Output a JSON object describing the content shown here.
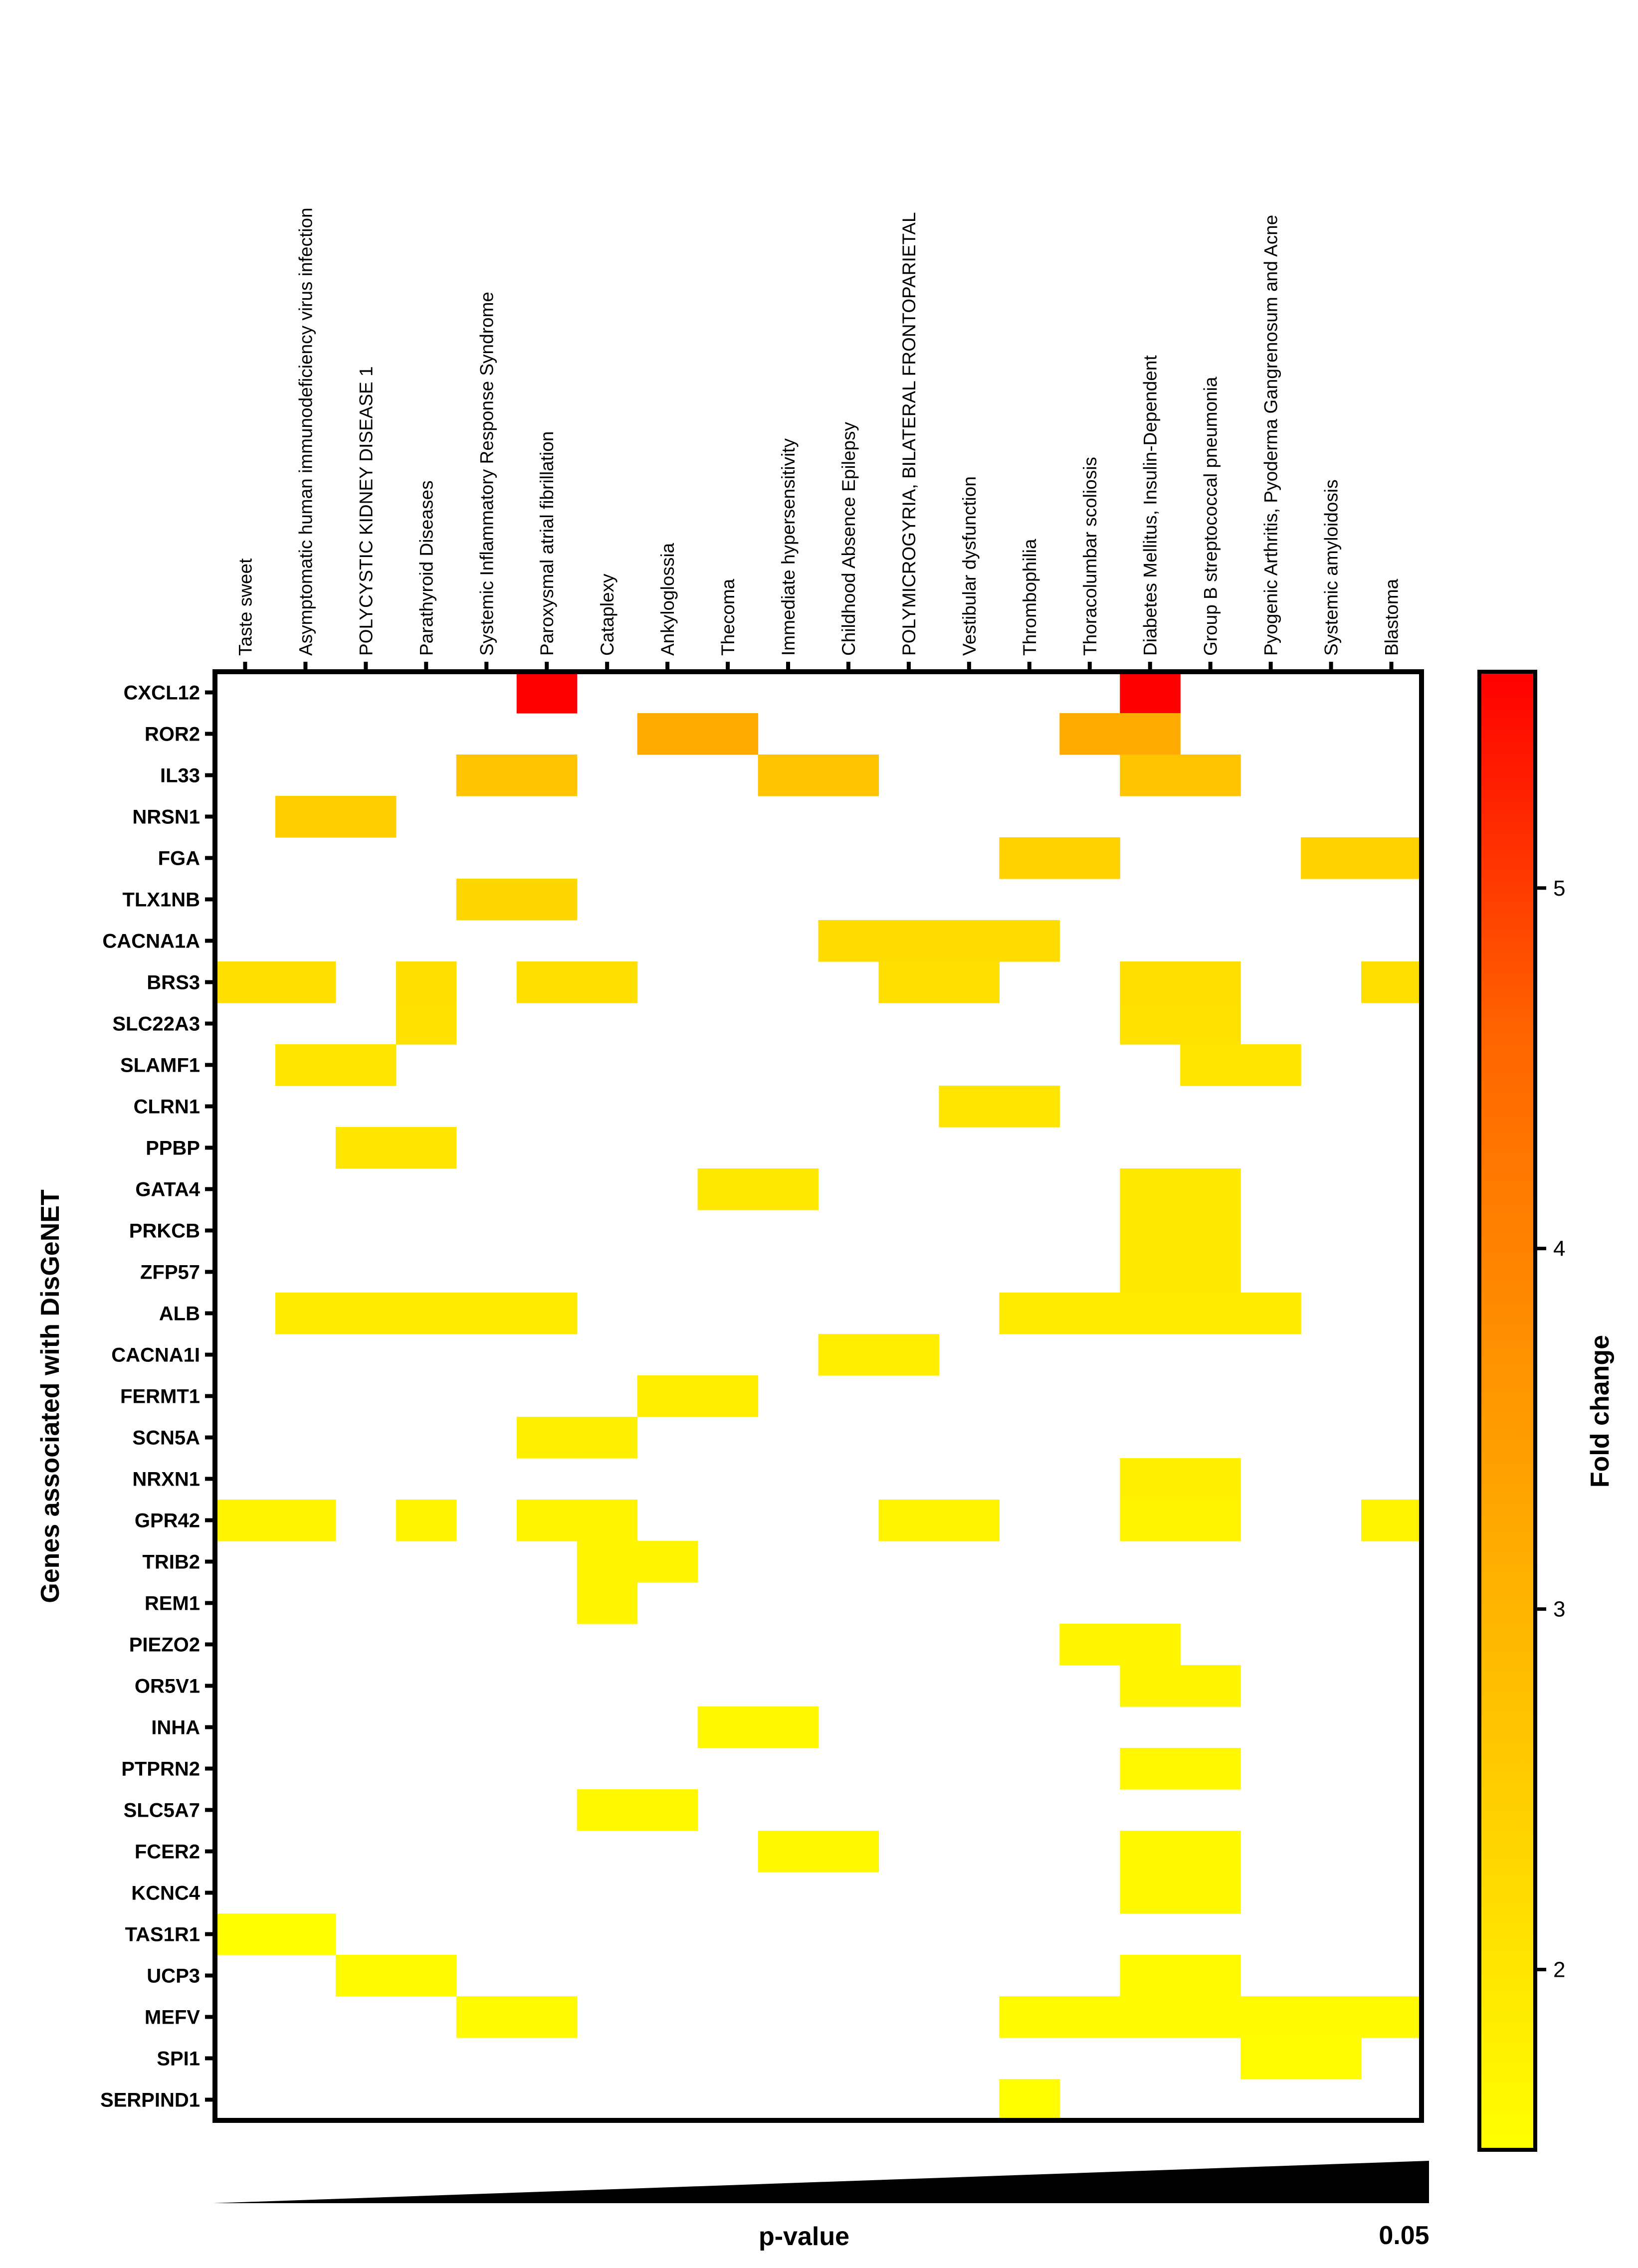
{
  "chart_data": {
    "type": "heatmap",
    "title": "",
    "ylabel": "Genes associated with DisGeNET",
    "xlabel": "p-value",
    "x_end_label": "0.05",
    "colorbar": {
      "label": "Fold change",
      "range": [
        1.5,
        5.6
      ],
      "ticks": [
        "2",
        "3",
        "4",
        "5"
      ],
      "colors": [
        "#ffff00",
        "#ffcc00",
        "#ff9900",
        "#ff6600",
        "#ff0000"
      ]
    },
    "columns": [
      "Taste sweet",
      "Asymptomatic human immunodeficiency virus infection",
      "POLYCYSTIC KIDNEY DISEASE 1",
      "Parathyroid Diseases",
      "Systemic Inflammatory Response Syndrome",
      "Paroxysmal atrial fibrillation",
      "Cataplexy",
      "Ankyloglossia",
      "Thecoma",
      "Immediate hypersensitivity",
      "Childhood Absence Epilepsy",
      "POLYMICROGYRIA, BILATERAL FRONTOPARIETAL",
      "Vestibular dysfunction",
      "Thrombophilia",
      "Thoracolumbar scoliosis",
      "Diabetes Mellitus, Insulin-Dependent",
      "Group B streptococcal pneumonia",
      "Pyogenic Arthritis, Pyoderma Gangrenosum and Acne",
      "Systemic amyloidosis",
      "Blastoma"
    ],
    "rows": [
      "CXCL12",
      "ROR2",
      "IL33",
      "NRSN1",
      "FGA",
      "TLX1NB",
      "CACNA1A",
      "BRS3",
      "SLC22A3",
      "SLAMF1",
      "CLRN1",
      "PPBP",
      "GATA4",
      "PRKCB",
      "ZFP57",
      "ALB",
      "CACNA1I",
      "FERMT1",
      "SCN5A",
      "NRXN1",
      "GPR42",
      "TRIB2",
      "REM1",
      "PIEZO2",
      "OR5V1",
      "INHA",
      "PTPRN2",
      "SLC5A7",
      "FCER2",
      "KCNC4",
      "TAS1R1",
      "UCP3",
      "MEFV",
      "SPI1",
      "SERPIND1"
    ],
    "cells": [
      {
        "row": "CXCL12",
        "col": 5,
        "value": 5.6
      },
      {
        "row": "CXCL12",
        "col": 15,
        "value": 5.6
      },
      {
        "row": "ROR2",
        "col": 7,
        "value": 3.2
      },
      {
        "row": "ROR2",
        "col": 8,
        "value": 3.2
      },
      {
        "row": "ROR2",
        "col": 14,
        "value": 3.2
      },
      {
        "row": "ROR2",
        "col": 15,
        "value": 3.2
      },
      {
        "row": "IL33",
        "col": 4,
        "value": 2.7
      },
      {
        "row": "IL33",
        "col": 5,
        "value": 2.7
      },
      {
        "row": "IL33",
        "col": 9,
        "value": 2.7
      },
      {
        "row": "IL33",
        "col": 10,
        "value": 2.7
      },
      {
        "row": "IL33",
        "col": 15,
        "value": 2.7
      },
      {
        "row": "IL33",
        "col": 16,
        "value": 2.7
      },
      {
        "row": "NRSN1",
        "col": 1,
        "value": 2.5
      },
      {
        "row": "NRSN1",
        "col": 2,
        "value": 2.5
      },
      {
        "row": "FGA",
        "col": 13,
        "value": 2.4
      },
      {
        "row": "FGA",
        "col": 14,
        "value": 2.4
      },
      {
        "row": "FGA",
        "col": 18,
        "value": 2.4
      },
      {
        "row": "FGA",
        "col": 19,
        "value": 2.4
      },
      {
        "row": "TLX1NB",
        "col": 4,
        "value": 2.3
      },
      {
        "row": "TLX1NB",
        "col": 5,
        "value": 2.3
      },
      {
        "row": "CACNA1A",
        "col": 10,
        "value": 2.2
      },
      {
        "row": "CACNA1A",
        "col": 11,
        "value": 2.2
      },
      {
        "row": "CACNA1A",
        "col": 12,
        "value": 2.2
      },
      {
        "row": "CACNA1A",
        "col": 13,
        "value": 2.2
      },
      {
        "row": "BRS3",
        "col": 0,
        "value": 2.15
      },
      {
        "row": "BRS3",
        "col": 1,
        "value": 2.15
      },
      {
        "row": "BRS3",
        "col": 3,
        "value": 2.15
      },
      {
        "row": "BRS3",
        "col": 5,
        "value": 2.15
      },
      {
        "row": "BRS3",
        "col": 6,
        "value": 2.15
      },
      {
        "row": "BRS3",
        "col": 11,
        "value": 2.15
      },
      {
        "row": "BRS3",
        "col": 12,
        "value": 2.15
      },
      {
        "row": "BRS3",
        "col": 15,
        "value": 2.15
      },
      {
        "row": "BRS3",
        "col": 16,
        "value": 2.15
      },
      {
        "row": "BRS3",
        "col": 19,
        "value": 2.15
      },
      {
        "row": "SLC22A3",
        "col": 3,
        "value": 2.1
      },
      {
        "row": "SLC22A3",
        "col": 15,
        "value": 2.1
      },
      {
        "row": "SLC22A3",
        "col": 16,
        "value": 2.1
      },
      {
        "row": "SLAMF1",
        "col": 1,
        "value": 2.05
      },
      {
        "row": "SLAMF1",
        "col": 2,
        "value": 2.05
      },
      {
        "row": "SLAMF1",
        "col": 16,
        "value": 2.05
      },
      {
        "row": "SLAMF1",
        "col": 17,
        "value": 2.05
      },
      {
        "row": "CLRN1",
        "col": 12,
        "value": 2.0
      },
      {
        "row": "CLRN1",
        "col": 13,
        "value": 2.0
      },
      {
        "row": "PPBP",
        "col": 2,
        "value": 2.0
      },
      {
        "row": "PPBP",
        "col": 3,
        "value": 2.0
      },
      {
        "row": "GATA4",
        "col": 8,
        "value": 1.95
      },
      {
        "row": "GATA4",
        "col": 9,
        "value": 1.95
      },
      {
        "row": "GATA4",
        "col": 15,
        "value": 1.95
      },
      {
        "row": "GATA4",
        "col": 16,
        "value": 1.95
      },
      {
        "row": "PRKCB",
        "col": 15,
        "value": 1.95
      },
      {
        "row": "PRKCB",
        "col": 16,
        "value": 1.95
      },
      {
        "row": "ZFP57",
        "col": 15,
        "value": 1.95
      },
      {
        "row": "ZFP57",
        "col": 16,
        "value": 1.95
      },
      {
        "row": "ALB",
        "col": 1,
        "value": 1.9
      },
      {
        "row": "ALB",
        "col": 2,
        "value": 1.9
      },
      {
        "row": "ALB",
        "col": 3,
        "value": 1.9
      },
      {
        "row": "ALB",
        "col": 4,
        "value": 1.9
      },
      {
        "row": "ALB",
        "col": 5,
        "value": 1.9
      },
      {
        "row": "ALB",
        "col": 13,
        "value": 1.9
      },
      {
        "row": "ALB",
        "col": 14,
        "value": 1.9
      },
      {
        "row": "ALB",
        "col": 15,
        "value": 1.9
      },
      {
        "row": "ALB",
        "col": 16,
        "value": 1.9
      },
      {
        "row": "ALB",
        "col": 17,
        "value": 1.9
      },
      {
        "row": "CACNA1I",
        "col": 10,
        "value": 1.85
      },
      {
        "row": "CACNA1I",
        "col": 11,
        "value": 1.85
      },
      {
        "row": "FERMT1",
        "col": 7,
        "value": 1.85
      },
      {
        "row": "FERMT1",
        "col": 8,
        "value": 1.85
      },
      {
        "row": "SCN5A",
        "col": 5,
        "value": 1.8
      },
      {
        "row": "SCN5A",
        "col": 6,
        "value": 1.8
      },
      {
        "row": "NRXN1",
        "col": 15,
        "value": 1.8
      },
      {
        "row": "NRXN1",
        "col": 16,
        "value": 1.8
      },
      {
        "row": "GPR42",
        "col": 0,
        "value": 1.75
      },
      {
        "row": "GPR42",
        "col": 1,
        "value": 1.75
      },
      {
        "row": "GPR42",
        "col": 3,
        "value": 1.75
      },
      {
        "row": "GPR42",
        "col": 5,
        "value": 1.75
      },
      {
        "row": "GPR42",
        "col": 6,
        "value": 1.75
      },
      {
        "row": "GPR42",
        "col": 11,
        "value": 1.75
      },
      {
        "row": "GPR42",
        "col": 12,
        "value": 1.75
      },
      {
        "row": "GPR42",
        "col": 15,
        "value": 1.75
      },
      {
        "row": "GPR42",
        "col": 16,
        "value": 1.75
      },
      {
        "row": "GPR42",
        "col": 19,
        "value": 1.75
      },
      {
        "row": "TRIB2",
        "col": 6,
        "value": 1.7
      },
      {
        "row": "TRIB2",
        "col": 7,
        "value": 1.7
      },
      {
        "row": "REM1",
        "col": 6,
        "value": 1.7
      },
      {
        "row": "PIEZO2",
        "col": 14,
        "value": 1.7
      },
      {
        "row": "PIEZO2",
        "col": 15,
        "value": 1.7
      },
      {
        "row": "OR5V1",
        "col": 15,
        "value": 1.7
      },
      {
        "row": "OR5V1",
        "col": 16,
        "value": 1.7
      },
      {
        "row": "INHA",
        "col": 8,
        "value": 1.65
      },
      {
        "row": "INHA",
        "col": 9,
        "value": 1.65
      },
      {
        "row": "PTPRN2",
        "col": 15,
        "value": 1.65
      },
      {
        "row": "PTPRN2",
        "col": 16,
        "value": 1.65
      },
      {
        "row": "SLC5A7",
        "col": 6,
        "value": 1.65
      },
      {
        "row": "SLC5A7",
        "col": 7,
        "value": 1.65
      },
      {
        "row": "FCER2",
        "col": 9,
        "value": 1.62
      },
      {
        "row": "FCER2",
        "col": 10,
        "value": 1.62
      },
      {
        "row": "FCER2",
        "col": 15,
        "value": 1.62
      },
      {
        "row": "FCER2",
        "col": 16,
        "value": 1.62
      },
      {
        "row": "KCNC4",
        "col": 15,
        "value": 1.62
      },
      {
        "row": "KCNC4",
        "col": 16,
        "value": 1.62
      },
      {
        "row": "TAS1R1",
        "col": 0,
        "value": 1.55
      },
      {
        "row": "TAS1R1",
        "col": 1,
        "value": 1.55
      },
      {
        "row": "UCP3",
        "col": 2,
        "value": 1.6
      },
      {
        "row": "UCP3",
        "col": 3,
        "value": 1.6
      },
      {
        "row": "UCP3",
        "col": 15,
        "value": 1.6
      },
      {
        "row": "UCP3",
        "col": 16,
        "value": 1.6
      },
      {
        "row": "MEFV",
        "col": 4,
        "value": 1.6
      },
      {
        "row": "MEFV",
        "col": 5,
        "value": 1.6
      },
      {
        "row": "MEFV",
        "col": 13,
        "value": 1.6
      },
      {
        "row": "MEFV",
        "col": 14,
        "value": 1.6
      },
      {
        "row": "MEFV",
        "col": 15,
        "value": 1.6
      },
      {
        "row": "MEFV",
        "col": 16,
        "value": 1.6
      },
      {
        "row": "MEFV",
        "col": 17,
        "value": 1.6
      },
      {
        "row": "MEFV",
        "col": 18,
        "value": 1.6
      },
      {
        "row": "MEFV",
        "col": 19,
        "value": 1.6
      },
      {
        "row": "SPI1",
        "col": 17,
        "value": 1.58
      },
      {
        "row": "SPI1",
        "col": 18,
        "value": 1.58
      },
      {
        "row": "SERPIND1",
        "col": 13,
        "value": 1.55
      }
    ]
  }
}
